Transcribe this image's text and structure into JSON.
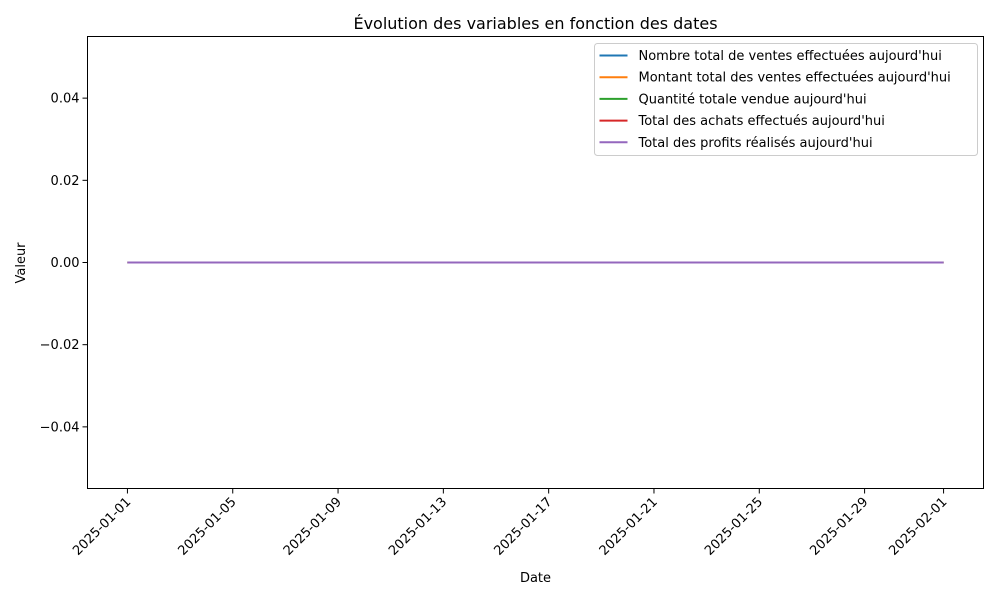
{
  "chart_data": {
    "type": "line",
    "title": "Évolution des variables en fonction des dates",
    "xlabel": "Date",
    "ylabel": "Valeur",
    "x": [
      "2025-01-01",
      "2025-01-02",
      "2025-01-03",
      "2025-01-04",
      "2025-01-05",
      "2025-01-06",
      "2025-01-07",
      "2025-01-08",
      "2025-01-09",
      "2025-01-10",
      "2025-01-11",
      "2025-01-12",
      "2025-01-13",
      "2025-01-14",
      "2025-01-15",
      "2025-01-16",
      "2025-01-17",
      "2025-01-18",
      "2025-01-19",
      "2025-01-20",
      "2025-01-21",
      "2025-01-22",
      "2025-01-23",
      "2025-01-24",
      "2025-01-25",
      "2025-01-26",
      "2025-01-27",
      "2025-01-28",
      "2025-01-29",
      "2025-01-30",
      "2025-01-31",
      "2025-02-01"
    ],
    "xlim": [
      "2024-12-30T11:36",
      "2025-02-02T12:24"
    ],
    "ylim": [
      -0.055,
      0.055
    ],
    "x_ticks": [
      "2025-01-01",
      "2025-01-05",
      "2025-01-09",
      "2025-01-13",
      "2025-01-17",
      "2025-01-21",
      "2025-01-25",
      "2025-01-29",
      "2025-02-01"
    ],
    "y_ticks": [
      -0.04,
      -0.02,
      0.0,
      0.02,
      0.04
    ],
    "y_tick_labels": [
      "−0.04",
      "−0.02",
      "0.00",
      "0.02",
      "0.04"
    ],
    "grid": false,
    "legend_position": "top-right",
    "series": [
      {
        "name": "Nombre total de ventes effectuées aujourd'hui",
        "color": "#1f77b4",
        "values": [
          0,
          0,
          0,
          0,
          0,
          0,
          0,
          0,
          0,
          0,
          0,
          0,
          0,
          0,
          0,
          0,
          0,
          0,
          0,
          0,
          0,
          0,
          0,
          0,
          0,
          0,
          0,
          0,
          0,
          0,
          0,
          0
        ]
      },
      {
        "name": "Montant total des ventes effectuées aujourd'hui",
        "color": "#ff7f0e",
        "values": [
          0,
          0,
          0,
          0,
          0,
          0,
          0,
          0,
          0,
          0,
          0,
          0,
          0,
          0,
          0,
          0,
          0,
          0,
          0,
          0,
          0,
          0,
          0,
          0,
          0,
          0,
          0,
          0,
          0,
          0,
          0,
          0
        ]
      },
      {
        "name": "Quantité totale vendue aujourd'hui",
        "color": "#2ca02c",
        "values": [
          0,
          0,
          0,
          0,
          0,
          0,
          0,
          0,
          0,
          0,
          0,
          0,
          0,
          0,
          0,
          0,
          0,
          0,
          0,
          0,
          0,
          0,
          0,
          0,
          0,
          0,
          0,
          0,
          0,
          0,
          0,
          0
        ]
      },
      {
        "name": "Total des achats effectués aujourd'hui",
        "color": "#d62728",
        "values": [
          0,
          0,
          0,
          0,
          0,
          0,
          0,
          0,
          0,
          0,
          0,
          0,
          0,
          0,
          0,
          0,
          0,
          0,
          0,
          0,
          0,
          0,
          0,
          0,
          0,
          0,
          0,
          0,
          0,
          0,
          0,
          0
        ]
      },
      {
        "name": "Total des profits réalisés aujourd'hui",
        "color": "#9467bd",
        "values": [
          0,
          0,
          0,
          0,
          0,
          0,
          0,
          0,
          0,
          0,
          0,
          0,
          0,
          0,
          0,
          0,
          0,
          0,
          0,
          0,
          0,
          0,
          0,
          0,
          0,
          0,
          0,
          0,
          0,
          0,
          0,
          0
        ]
      }
    ]
  }
}
